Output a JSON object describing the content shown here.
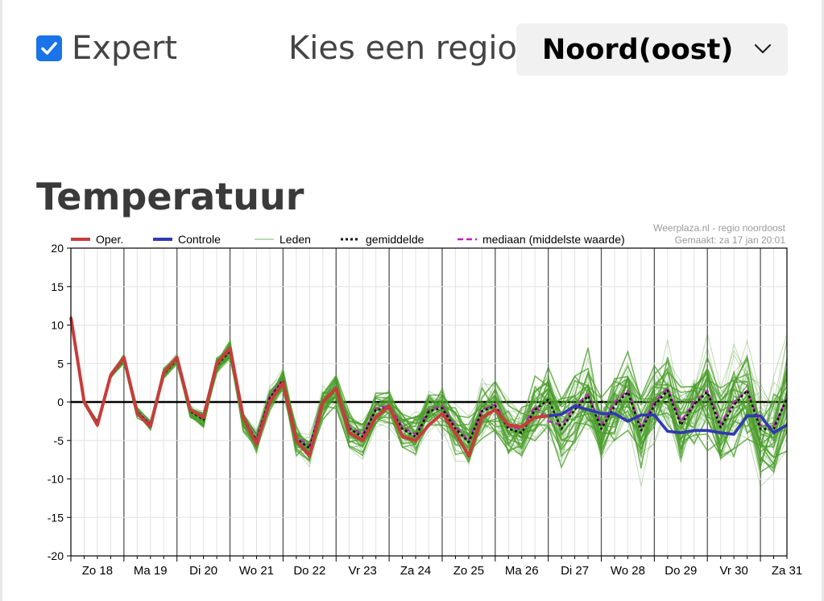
{
  "expert": {
    "label": "Expert",
    "checked": true
  },
  "region": {
    "label": "Kies een regio:",
    "selected": "Noord(oost)"
  },
  "section": {
    "title": "Temperatuur"
  },
  "colors": {
    "oper": "#c83c3c",
    "controle": "#3238b4",
    "leden": "#4a9e2a",
    "gemiddelde": "#111111",
    "mediaan": "#c020c0"
  },
  "chart_data": {
    "type": "line",
    "source_note": "Weerplaza.nl - regio noordoost",
    "made_note": "Gemaakt: za 17 jan 20:01",
    "ylim": [
      -20,
      20
    ],
    "yticks": [
      20,
      15,
      10,
      5,
      0,
      -5,
      -10,
      -15,
      -20
    ],
    "xlim": [
      0,
      162
    ],
    "x_unit_note": "hours after run",
    "day_labels": [
      "Zo 18",
      "Ma 19",
      "Di 20",
      "Wo 21",
      "Do 22",
      "Vr 23",
      "Za 24",
      "Zo 25",
      "Ma 26",
      "Di 27",
      "Wo 28",
      "Do 29",
      "Vr 30",
      "Za 31"
    ],
    "grid": true,
    "legend": [
      {
        "key": "oper",
        "label": "Oper."
      },
      {
        "key": "controle",
        "label": "Controle"
      },
      {
        "key": "leden",
        "label": "Leden"
      },
      {
        "key": "gemiddelde",
        "label": "gemiddelde"
      },
      {
        "key": "mediaan",
        "label": "mediaan (middelste waarde)"
      }
    ],
    "oper": {
      "x": [
        0,
        3,
        6,
        9,
        12,
        15,
        18,
        21,
        24,
        27,
        30,
        33,
        36,
        39,
        42,
        45,
        48,
        51,
        54,
        57,
        60,
        63,
        66,
        69,
        72,
        75,
        78,
        81,
        84,
        87,
        90,
        93,
        96,
        99,
        102,
        105,
        108
      ],
      "y": [
        11,
        0,
        -3,
        3.5,
        5.8,
        -1.5,
        -3.2,
        3.8,
        5.8,
        -1,
        -2,
        5,
        7,
        -2,
        -5.5,
        0,
        2.5,
        -5,
        -7,
        0,
        1.8,
        -4,
        -5,
        -2,
        -0.5,
        -4.5,
        -5,
        -3,
        -1.5,
        -4,
        -7,
        -2,
        -1,
        -3,
        -3.2,
        -2,
        -1.8
      ]
    },
    "controle": {
      "x": [
        108,
        111,
        114,
        117,
        120,
        123,
        126,
        129,
        132,
        135,
        138,
        141,
        144,
        147,
        150,
        153,
        156,
        159,
        162
      ],
      "y": [
        -1.8,
        -1.6,
        -0.5,
        -1,
        -1.5,
        -1.5,
        -2.5,
        -1.7,
        -1.7,
        -3.8,
        -4,
        -3.7,
        -3.7,
        -4,
        -4.2,
        -1.8,
        -1.8,
        -4,
        -3
      ]
    },
    "gemiddelde": {
      "x": [
        0,
        3,
        6,
        9,
        12,
        15,
        18,
        21,
        24,
        27,
        30,
        33,
        36,
        39,
        42,
        45,
        48,
        51,
        54,
        57,
        60,
        63,
        66,
        69,
        72,
        75,
        78,
        81,
        84,
        87,
        90,
        93,
        96,
        99,
        102,
        105,
        108,
        111,
        114,
        117,
        120,
        123,
        126,
        129,
        132,
        135,
        138,
        141,
        144,
        147,
        150,
        153,
        156,
        159,
        162
      ],
      "y": [
        11,
        0,
        -2.7,
        3.4,
        5.6,
        -1.3,
        -3,
        3.6,
        5.6,
        -1.2,
        -2.3,
        4.8,
        6.6,
        -2.2,
        -5,
        0.5,
        2.8,
        -4.8,
        -6,
        0,
        1.7,
        -3.5,
        -4.5,
        -1,
        -0.8,
        -3.5,
        -4.5,
        -1.2,
        -0.8,
        -3.5,
        -5.2,
        -1.2,
        -0.5,
        -3.5,
        -4,
        -1,
        0.3,
        -3.5,
        -1,
        0.8,
        -3.5,
        -0.5,
        1.3,
        -3.7,
        -0.4,
        1.5,
        -3,
        -0.3,
        1.3,
        -3.3,
        -0.4,
        1.5,
        -3.5,
        -3.5,
        0.5
      ]
    },
    "mediaan": {
      "x": [
        0,
        3,
        6,
        9,
        12,
        15,
        18,
        21,
        24,
        27,
        30,
        33,
        36,
        39,
        42,
        45,
        48,
        51,
        54,
        57,
        60,
        63,
        66,
        69,
        72,
        75,
        78,
        81,
        84,
        87,
        90,
        93,
        96,
        99,
        102,
        105,
        108,
        111,
        114,
        117,
        120,
        123,
        126,
        129,
        132,
        135,
        138,
        141,
        144,
        147,
        150,
        153,
        156,
        159,
        162
      ],
      "y": [
        11,
        0,
        -2.6,
        3.5,
        5.7,
        -1.2,
        -2.9,
        3.7,
        5.7,
        -1,
        -2,
        4.9,
        6.7,
        -2,
        -4.8,
        0.8,
        2.9,
        -4.5,
        -5.7,
        0.2,
        1.8,
        -3.3,
        -4.2,
        -0.8,
        -0.5,
        -3.2,
        -4.2,
        -1,
        -0.5,
        -3.2,
        -5,
        -1,
        -0.3,
        -3.2,
        -3.5,
        -0.5,
        -2.5,
        -3,
        -0.5,
        1,
        -3,
        0,
        1.5,
        -3.2,
        0,
        1.8,
        -2.5,
        0,
        1.5,
        -2.8,
        0,
        1.5,
        -3,
        -3.2,
        0.5
      ]
    }
  }
}
